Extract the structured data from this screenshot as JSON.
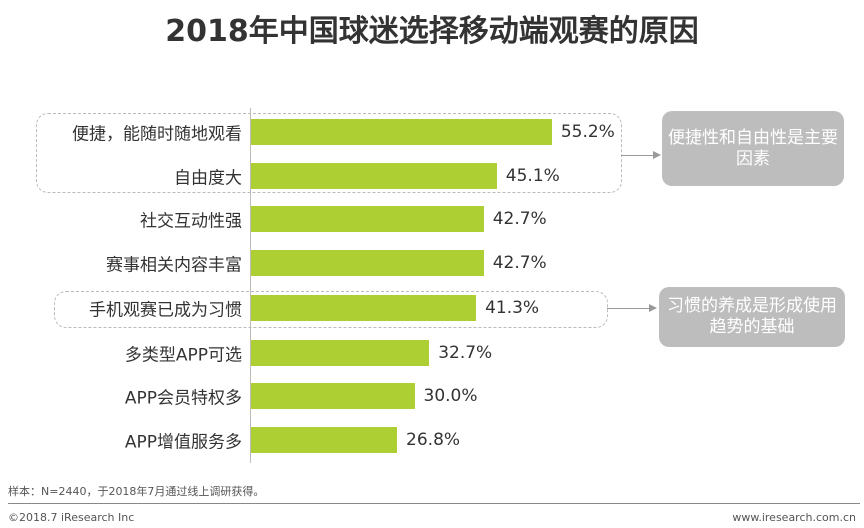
{
  "chart_data": {
    "type": "bar",
    "orientation": "horizontal",
    "title": "2018年中国球迷选择移动端观赛的原因",
    "categories": [
      "便捷，能随时随地观看",
      "自由度大",
      "社交互动性强",
      "赛事相关内容丰富",
      "手机观赛已成为习惯",
      "多类型APP可选",
      "APP会员特权多",
      "APP增值服务多"
    ],
    "values": [
      55.2,
      45.1,
      42.7,
      42.7,
      41.3,
      32.7,
      30.0,
      26.8
    ],
    "labels": [
      "55.2%",
      "45.1%",
      "42.7%",
      "42.7%",
      "41.3%",
      "32.7%",
      "30.0%",
      "26.8%"
    ],
    "unit": "%",
    "bar_color": "#aecf34",
    "grid": false,
    "annotations": [
      {
        "text": "便捷性和自由性是主要因素",
        "targets": [
          0,
          1
        ],
        "color": "#bdbdbd"
      },
      {
        "text": "习惯的养成是形成使用趋势的基础",
        "targets": [
          4
        ],
        "color": "#bdbdbd"
      }
    ]
  },
  "footer": {
    "sample": "样本：N=2440，于2018年7月通过线上调研获得。",
    "copyright": "©2018.7 iResearch Inc",
    "website": "www.iresearch.com.cn"
  }
}
